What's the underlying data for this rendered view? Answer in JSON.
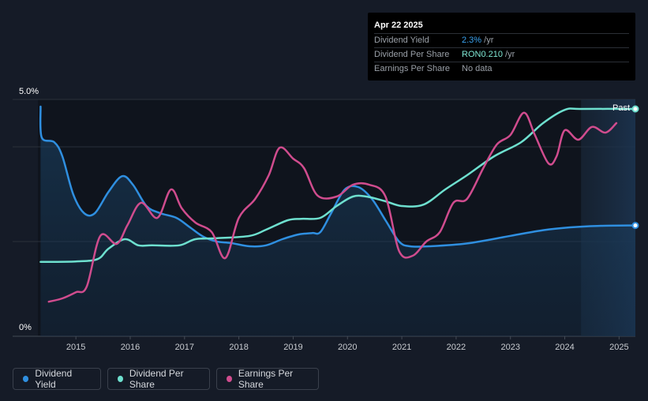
{
  "tooltip": {
    "date": "Apr 22 2025",
    "rows": [
      {
        "label": "Dividend Yield",
        "value": "2.3%",
        "unit": " /yr",
        "color": "blue"
      },
      {
        "label": "Dividend Per Share",
        "value": "RON0.210",
        "unit": " /yr",
        "color": "teal"
      },
      {
        "label": "Earnings Per Share",
        "value": "",
        "unit": "No data",
        "color": "none"
      }
    ]
  },
  "legend": [
    {
      "label": "Dividend Yield",
      "color": "#2f8fe0"
    },
    {
      "label": "Dividend Per Share",
      "color": "#6ee0cf"
    },
    {
      "label": "Earnings Per Share",
      "color": "#d04c8e"
    }
  ],
  "chart_data": {
    "type": "line",
    "title": "",
    "xlabel": "",
    "ylabel": "",
    "x_ticks": [
      "2015",
      "2016",
      "2017",
      "2018",
      "2019",
      "2020",
      "2021",
      "2022",
      "2023",
      "2024",
      "2025"
    ],
    "y_ticks": [
      "5.0%",
      "0%"
    ],
    "ylim": [
      0,
      5.0
    ],
    "xlim": [
      2014.3,
      2025.3
    ],
    "past_label": "Past",
    "forecast_start": 2024.3,
    "series": [
      {
        "name": "Dividend Yield",
        "color": "#2f8fe0",
        "fill": true,
        "unit": "%",
        "points": [
          [
            2014.35,
            4.85
          ],
          [
            2014.37,
            4.2
          ],
          [
            2014.6,
            4.1
          ],
          [
            2014.75,
            3.8
          ],
          [
            2014.95,
            3.0
          ],
          [
            2015.15,
            2.6
          ],
          [
            2015.35,
            2.6
          ],
          [
            2015.6,
            3.05
          ],
          [
            2015.85,
            3.38
          ],
          [
            2016.05,
            3.2
          ],
          [
            2016.3,
            2.75
          ],
          [
            2016.55,
            2.6
          ],
          [
            2016.85,
            2.5
          ],
          [
            2017.1,
            2.3
          ],
          [
            2017.35,
            2.1
          ],
          [
            2017.6,
            2.0
          ],
          [
            2017.85,
            1.97
          ],
          [
            2018.2,
            1.9
          ],
          [
            2018.5,
            1.92
          ],
          [
            2018.8,
            2.05
          ],
          [
            2019.1,
            2.15
          ],
          [
            2019.35,
            2.18
          ],
          [
            2019.5,
            2.2
          ],
          [
            2019.7,
            2.6
          ],
          [
            2019.95,
            3.1
          ],
          [
            2020.2,
            3.15
          ],
          [
            2020.45,
            2.9
          ],
          [
            2020.7,
            2.45
          ],
          [
            2020.95,
            2.0
          ],
          [
            2021.15,
            1.9
          ],
          [
            2021.5,
            1.9
          ],
          [
            2022.2,
            1.96
          ],
          [
            2023.0,
            2.12
          ],
          [
            2023.6,
            2.24
          ],
          [
            2024.1,
            2.3
          ],
          [
            2024.6,
            2.33
          ],
          [
            2025.3,
            2.34
          ]
        ]
      },
      {
        "name": "Dividend Per Share",
        "color": "#6ee0cf",
        "fill": false,
        "unit": "RON",
        "points": [
          [
            2014.35,
            1.57
          ],
          [
            2015.0,
            1.58
          ],
          [
            2015.4,
            1.63
          ],
          [
            2015.6,
            1.85
          ],
          [
            2015.9,
            2.05
          ],
          [
            2016.15,
            1.92
          ],
          [
            2016.4,
            1.92
          ],
          [
            2016.9,
            1.92
          ],
          [
            2017.2,
            2.05
          ],
          [
            2017.6,
            2.07
          ],
          [
            2018.2,
            2.12
          ],
          [
            2018.5,
            2.25
          ],
          [
            2018.9,
            2.45
          ],
          [
            2019.15,
            2.48
          ],
          [
            2019.5,
            2.5
          ],
          [
            2019.8,
            2.75
          ],
          [
            2020.1,
            2.95
          ],
          [
            2020.35,
            2.95
          ],
          [
            2020.7,
            2.85
          ],
          [
            2021.0,
            2.75
          ],
          [
            2021.4,
            2.78
          ],
          [
            2021.8,
            3.1
          ],
          [
            2022.2,
            3.4
          ],
          [
            2022.7,
            3.8
          ],
          [
            2023.2,
            4.1
          ],
          [
            2023.6,
            4.5
          ],
          [
            2024.0,
            4.78
          ],
          [
            2024.3,
            4.8
          ],
          [
            2025.3,
            4.8
          ]
        ]
      },
      {
        "name": "Earnings Per Share",
        "color": "#d04c8e",
        "fill": false,
        "unit": "RON",
        "points": [
          [
            2014.5,
            0.73
          ],
          [
            2014.75,
            0.8
          ],
          [
            2015.0,
            0.93
          ],
          [
            2015.2,
            1.05
          ],
          [
            2015.45,
            2.12
          ],
          [
            2015.75,
            1.95
          ],
          [
            2015.95,
            2.35
          ],
          [
            2016.2,
            2.82
          ],
          [
            2016.5,
            2.5
          ],
          [
            2016.75,
            3.1
          ],
          [
            2016.95,
            2.7
          ],
          [
            2017.2,
            2.4
          ],
          [
            2017.5,
            2.2
          ],
          [
            2017.75,
            1.65
          ],
          [
            2018.0,
            2.5
          ],
          [
            2018.3,
            2.9
          ],
          [
            2018.55,
            3.4
          ],
          [
            2018.75,
            3.98
          ],
          [
            2019.0,
            3.75
          ],
          [
            2019.2,
            3.55
          ],
          [
            2019.45,
            2.97
          ],
          [
            2019.8,
            2.95
          ],
          [
            2020.1,
            3.2
          ],
          [
            2020.4,
            3.2
          ],
          [
            2020.7,
            2.95
          ],
          [
            2020.95,
            1.8
          ],
          [
            2021.2,
            1.7
          ],
          [
            2021.45,
            2.0
          ],
          [
            2021.7,
            2.2
          ],
          [
            2021.95,
            2.82
          ],
          [
            2022.2,
            2.9
          ],
          [
            2022.5,
            3.55
          ],
          [
            2022.75,
            4.05
          ],
          [
            2023.0,
            4.25
          ],
          [
            2023.25,
            4.72
          ],
          [
            2023.45,
            4.25
          ],
          [
            2023.7,
            3.65
          ],
          [
            2023.85,
            3.8
          ],
          [
            2024.0,
            4.35
          ],
          [
            2024.25,
            4.15
          ],
          [
            2024.5,
            4.42
          ],
          [
            2024.75,
            4.3
          ],
          [
            2024.95,
            4.5
          ]
        ]
      }
    ],
    "end_markers": [
      {
        "series": "Dividend Per Share",
        "x": 2025.3,
        "y": 4.8
      },
      {
        "series": "Dividend Yield",
        "x": 2025.3,
        "y": 2.34
      }
    ]
  }
}
